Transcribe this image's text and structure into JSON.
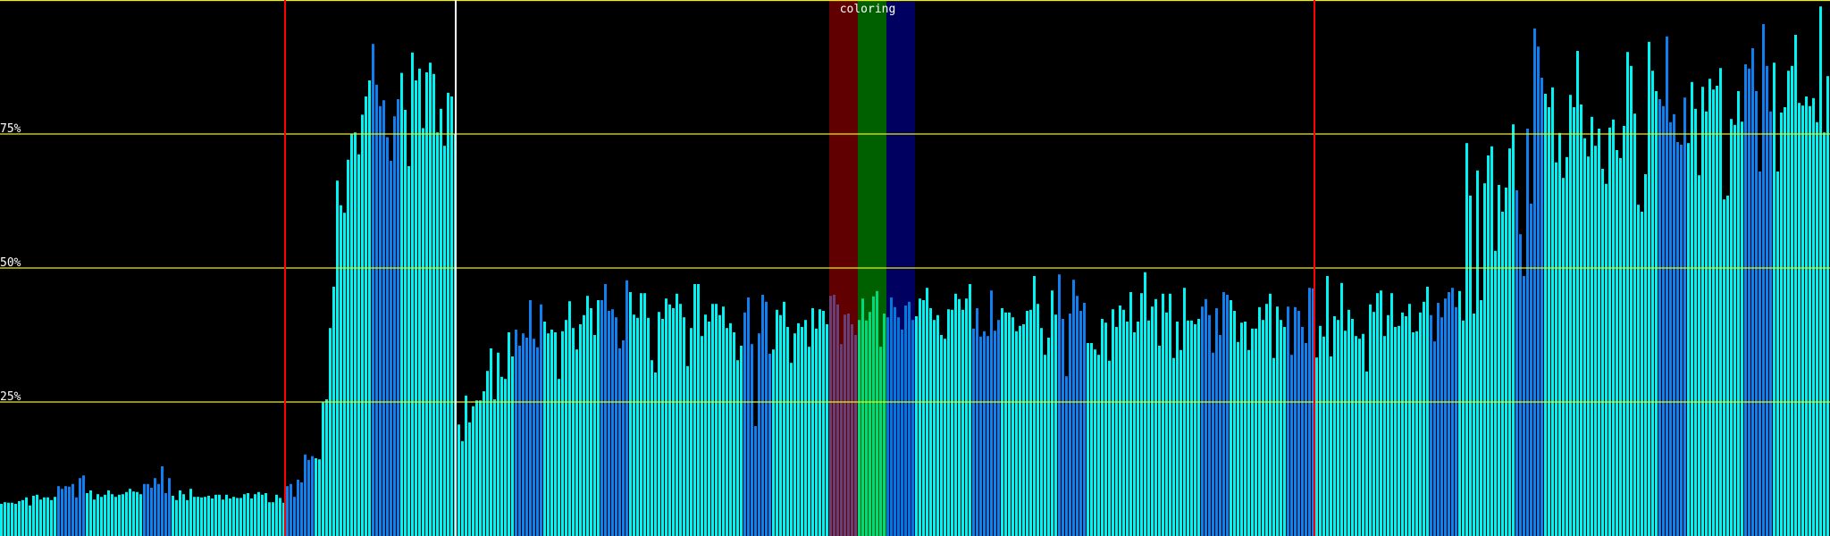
{
  "chart_data": {
    "type": "bar",
    "title": "",
    "xlabel": "",
    "ylabel": "",
    "ylim": [
      0,
      100
    ],
    "bar_count": 512,
    "grid": true,
    "y_ticks": [
      {
        "value": 25,
        "label": "25%"
      },
      {
        "value": 50,
        "label": "50%"
      },
      {
        "value": 75,
        "label": "75%"
      },
      {
        "value": 100,
        "label": ""
      }
    ],
    "colors": {
      "background": "#000000",
      "bar_default": "#00f4f4",
      "bar_highlight": "#1080f0",
      "gridline": "#f0f000",
      "marker_red": "#ff0000",
      "marker_white": "#ffffff",
      "text": "#ffffff"
    },
    "highlight_bar_ranges": [
      [
        16,
        23
      ],
      [
        40,
        47
      ],
      [
        80,
        87
      ],
      [
        104,
        111
      ],
      [
        144,
        151
      ],
      [
        168,
        175
      ],
      [
        208,
        215
      ],
      [
        232,
        239
      ],
      [
        272,
        279
      ],
      [
        296,
        303
      ],
      [
        336,
        343
      ],
      [
        360,
        367
      ],
      [
        400,
        407
      ],
      [
        424,
        431
      ],
      [
        464,
        471
      ],
      [
        488,
        495
      ]
    ],
    "markers": [
      {
        "bar_index": 80,
        "color": "#ff0000"
      },
      {
        "bar_index": 127.75,
        "color": "#ffffff"
      },
      {
        "bar_index": 368,
        "color": "#ff0000"
      }
    ],
    "legend": {
      "label": "coloring",
      "bands": [
        {
          "from_bar": 232,
          "to_bar": 240,
          "color": "#c00000"
        },
        {
          "from_bar": 240,
          "to_bar": 248,
          "color": "#00c000"
        },
        {
          "from_bar": 248,
          "to_bar": 256,
          "color": "#0000c0"
        }
      ],
      "opacity": 0.5
    },
    "values": [
      6.0,
      6.3,
      6.2,
      6.2,
      6.0,
      6.5,
      6.7,
      7.2,
      5.7,
      7.5,
      7.7,
      6.8,
      7.2,
      7.2,
      6.7,
      7.3,
      9.3,
      8.8,
      9.3,
      9.2,
      9.7,
      7.2,
      10.8,
      11.3,
      8.0,
      8.5,
      6.8,
      7.8,
      7.3,
      7.7,
      8.5,
      7.8,
      7.3,
      7.7,
      7.8,
      8.2,
      8.8,
      8.3,
      8.2,
      7.8,
      9.7,
      9.7,
      9.0,
      10.8,
      9.7,
      13.0,
      8.0,
      10.8,
      7.5,
      6.7,
      8.5,
      7.8,
      6.7,
      8.8,
      7.3,
      7.3,
      7.2,
      7.3,
      7.5,
      7.0,
      7.7,
      7.7,
      6.8,
      7.7,
      7.0,
      7.3,
      7.1,
      7.1,
      7.8,
      8.0,
      7.0,
      7.8,
      8.2,
      7.7,
      8.0,
      6.3,
      6.3,
      7.7,
      7.1,
      6.2,
      9.3,
      9.7,
      7.3,
      10.5,
      10.0,
      15.2,
      14.2,
      14.9,
      14.5,
      14.3,
      24.9,
      25.5,
      38.8,
      46.5,
      66.3,
      61.7,
      60.3,
      70.2,
      75.0,
      75.3,
      71.2,
      78.6,
      82.0,
      85.0,
      91.8,
      84.2,
      80.2,
      81.3,
      74.4,
      70.0,
      78.3,
      81.5,
      86.4,
      79.5,
      69.0,
      90.2,
      85.0,
      87.2,
      76.1,
      86.5,
      88.3,
      86.2,
      75.3,
      79.7,
      72.8,
      82.7,
      82.0,
      75.0,
      20.8,
      17.7,
      26.2,
      21.2,
      24.2,
      25.3,
      25.3,
      27.0,
      30.8,
      35.0,
      25.5,
      34.2,
      29.7,
      29.3,
      38.0,
      33.5,
      38.5,
      35.5,
      37.8,
      37.0,
      44.0,
      36.8,
      35.2,
      43.2,
      40.0,
      37.8,
      38.5,
      38.0,
      29.3,
      38.2,
      40.3,
      43.8,
      38.8,
      34.8,
      39.5,
      41.2,
      44.8,
      42.5,
      37.5,
      44.0,
      44.0,
      47.0,
      42.0,
      42.3,
      40.8,
      35.0,
      36.5,
      47.7,
      45.5,
      41.3,
      40.7,
      45.3,
      45.3,
      40.7,
      32.8,
      30.5,
      41.8,
      40.5,
      44.3,
      43.2,
      42.5,
      45.2,
      43.3,
      40.8,
      31.7,
      38.8,
      47.0,
      47.0,
      37.3,
      41.3,
      40.0,
      43.3,
      43.3,
      41.2,
      42.8,
      38.8,
      39.7,
      38.0,
      32.8,
      35.5,
      41.7,
      44.5,
      35.8,
      20.5,
      37.8,
      45.0,
      43.7,
      34.0,
      34.8,
      42.2,
      41.2,
      43.7,
      39.0,
      32.3,
      37.8,
      39.7,
      39.0,
      40.3,
      35.3,
      42.5,
      38.7,
      42.3,
      42.0,
      39.5,
      44.8,
      45.0,
      43.2,
      35.8,
      41.3,
      41.5,
      39.5,
      37.5,
      40.3,
      44.3,
      40.2,
      41.8,
      44.7,
      45.7,
      35.3,
      41.5,
      40.8,
      44.5,
      42.7,
      40.8,
      38.5,
      43.0,
      43.7,
      40.3,
      41.0,
      44.3,
      44.0,
      46.3,
      42.5,
      40.3,
      41.2,
      37.5,
      36.8,
      42.3,
      42.2,
      45.2,
      44.2,
      42.2,
      44.3,
      47.0,
      38.7,
      42.5,
      37.2,
      38.2,
      37.3,
      45.8,
      38.3,
      40.3,
      42.5,
      41.7,
      41.7,
      40.8,
      38.2,
      39.2,
      39.5,
      42.0,
      42.2,
      48.5,
      43.3,
      38.8,
      33.8,
      37.0,
      45.8,
      41.3,
      48.8,
      40.5,
      29.8,
      41.5,
      47.8,
      44.8,
      42.0,
      43.5,
      36.0,
      36.0,
      34.8,
      33.8,
      40.5,
      39.8,
      32.7,
      42.3,
      39.0,
      43.0,
      42.2,
      40.0,
      45.5,
      38.0,
      40.0,
      45.3,
      49.2,
      40.2,
      42.8,
      44.2,
      35.5,
      45.2,
      41.7,
      45.2,
      33.2,
      40.0,
      34.7,
      46.3,
      40.2,
      40.2,
      39.5,
      40.5,
      42.8,
      44.2,
      41.2,
      34.2,
      42.5,
      37.5,
      45.5,
      45.0,
      44.0,
      42.0,
      36.2,
      39.8,
      40.0,
      34.7,
      38.7,
      38.7,
      42.7,
      40.3,
      43.3,
      45.2,
      33.2,
      42.8,
      40.3,
      39.0,
      42.8,
      33.8,
      42.7,
      42.0,
      39.0,
      36.0,
      46.3,
      46.2,
      33.3,
      39.2,
      37.2,
      48.5,
      33.5,
      41.0,
      40.3,
      47.2,
      38.3,
      42.2,
      40.5,
      37.3,
      36.8,
      37.7,
      30.7,
      43.2,
      41.8,
      45.3,
      45.8,
      37.3,
      41.2,
      45.3,
      39.0,
      39.2,
      41.7,
      41.0,
      43.3,
      38.0,
      38.2,
      41.7,
      43.7,
      46.5,
      41.2,
      36.3,
      43.5,
      40.8,
      44.3,
      45.5,
      46.3,
      42.7,
      45.7,
      40.2,
      73.3,
      63.5,
      41.5,
      68.2,
      44.0,
      65.8,
      71.0,
      72.7,
      53.2,
      65.5,
      60.5,
      65.0,
      72.3,
      76.8,
      64.5,
      56.3,
      48.5,
      76.0,
      62.0,
      94.7,
      91.3,
      85.5,
      82.5,
      80.0,
      83.7,
      69.7,
      75.2,
      66.8,
      70.7,
      82.3,
      80.0,
      90.5,
      80.5,
      74.2,
      70.8,
      78.2,
      72.8,
      76.0,
      68.5,
      65.7,
      76.2,
      77.7,
      72.0,
      70.5,
      76.5,
      90.3,
      87.7,
      78.8,
      61.8,
      60.5,
      67.5,
      92.2,
      86.8,
      83.0,
      81.5,
      80.2,
      93.2,
      77.2,
      78.7,
      73.5,
      73.0,
      81.8,
      73.3,
      84.7,
      79.7,
      67.3,
      83.8,
      79.2,
      85.3,
      83.3,
      84.0,
      87.3,
      62.8,
      63.5,
      77.8,
      76.7,
      83.0,
      77.3,
      88.0,
      87.2,
      91.0,
      83.0,
      68.0,
      95.5,
      87.7,
      79.2,
      88.3,
      68.0,
      79.0,
      80.0,
      86.8,
      87.7,
      93.5,
      80.8,
      80.3,
      82.0,
      80.2,
      81.7,
      77.2,
      98.8,
      75.3,
      85.8
    ]
  }
}
